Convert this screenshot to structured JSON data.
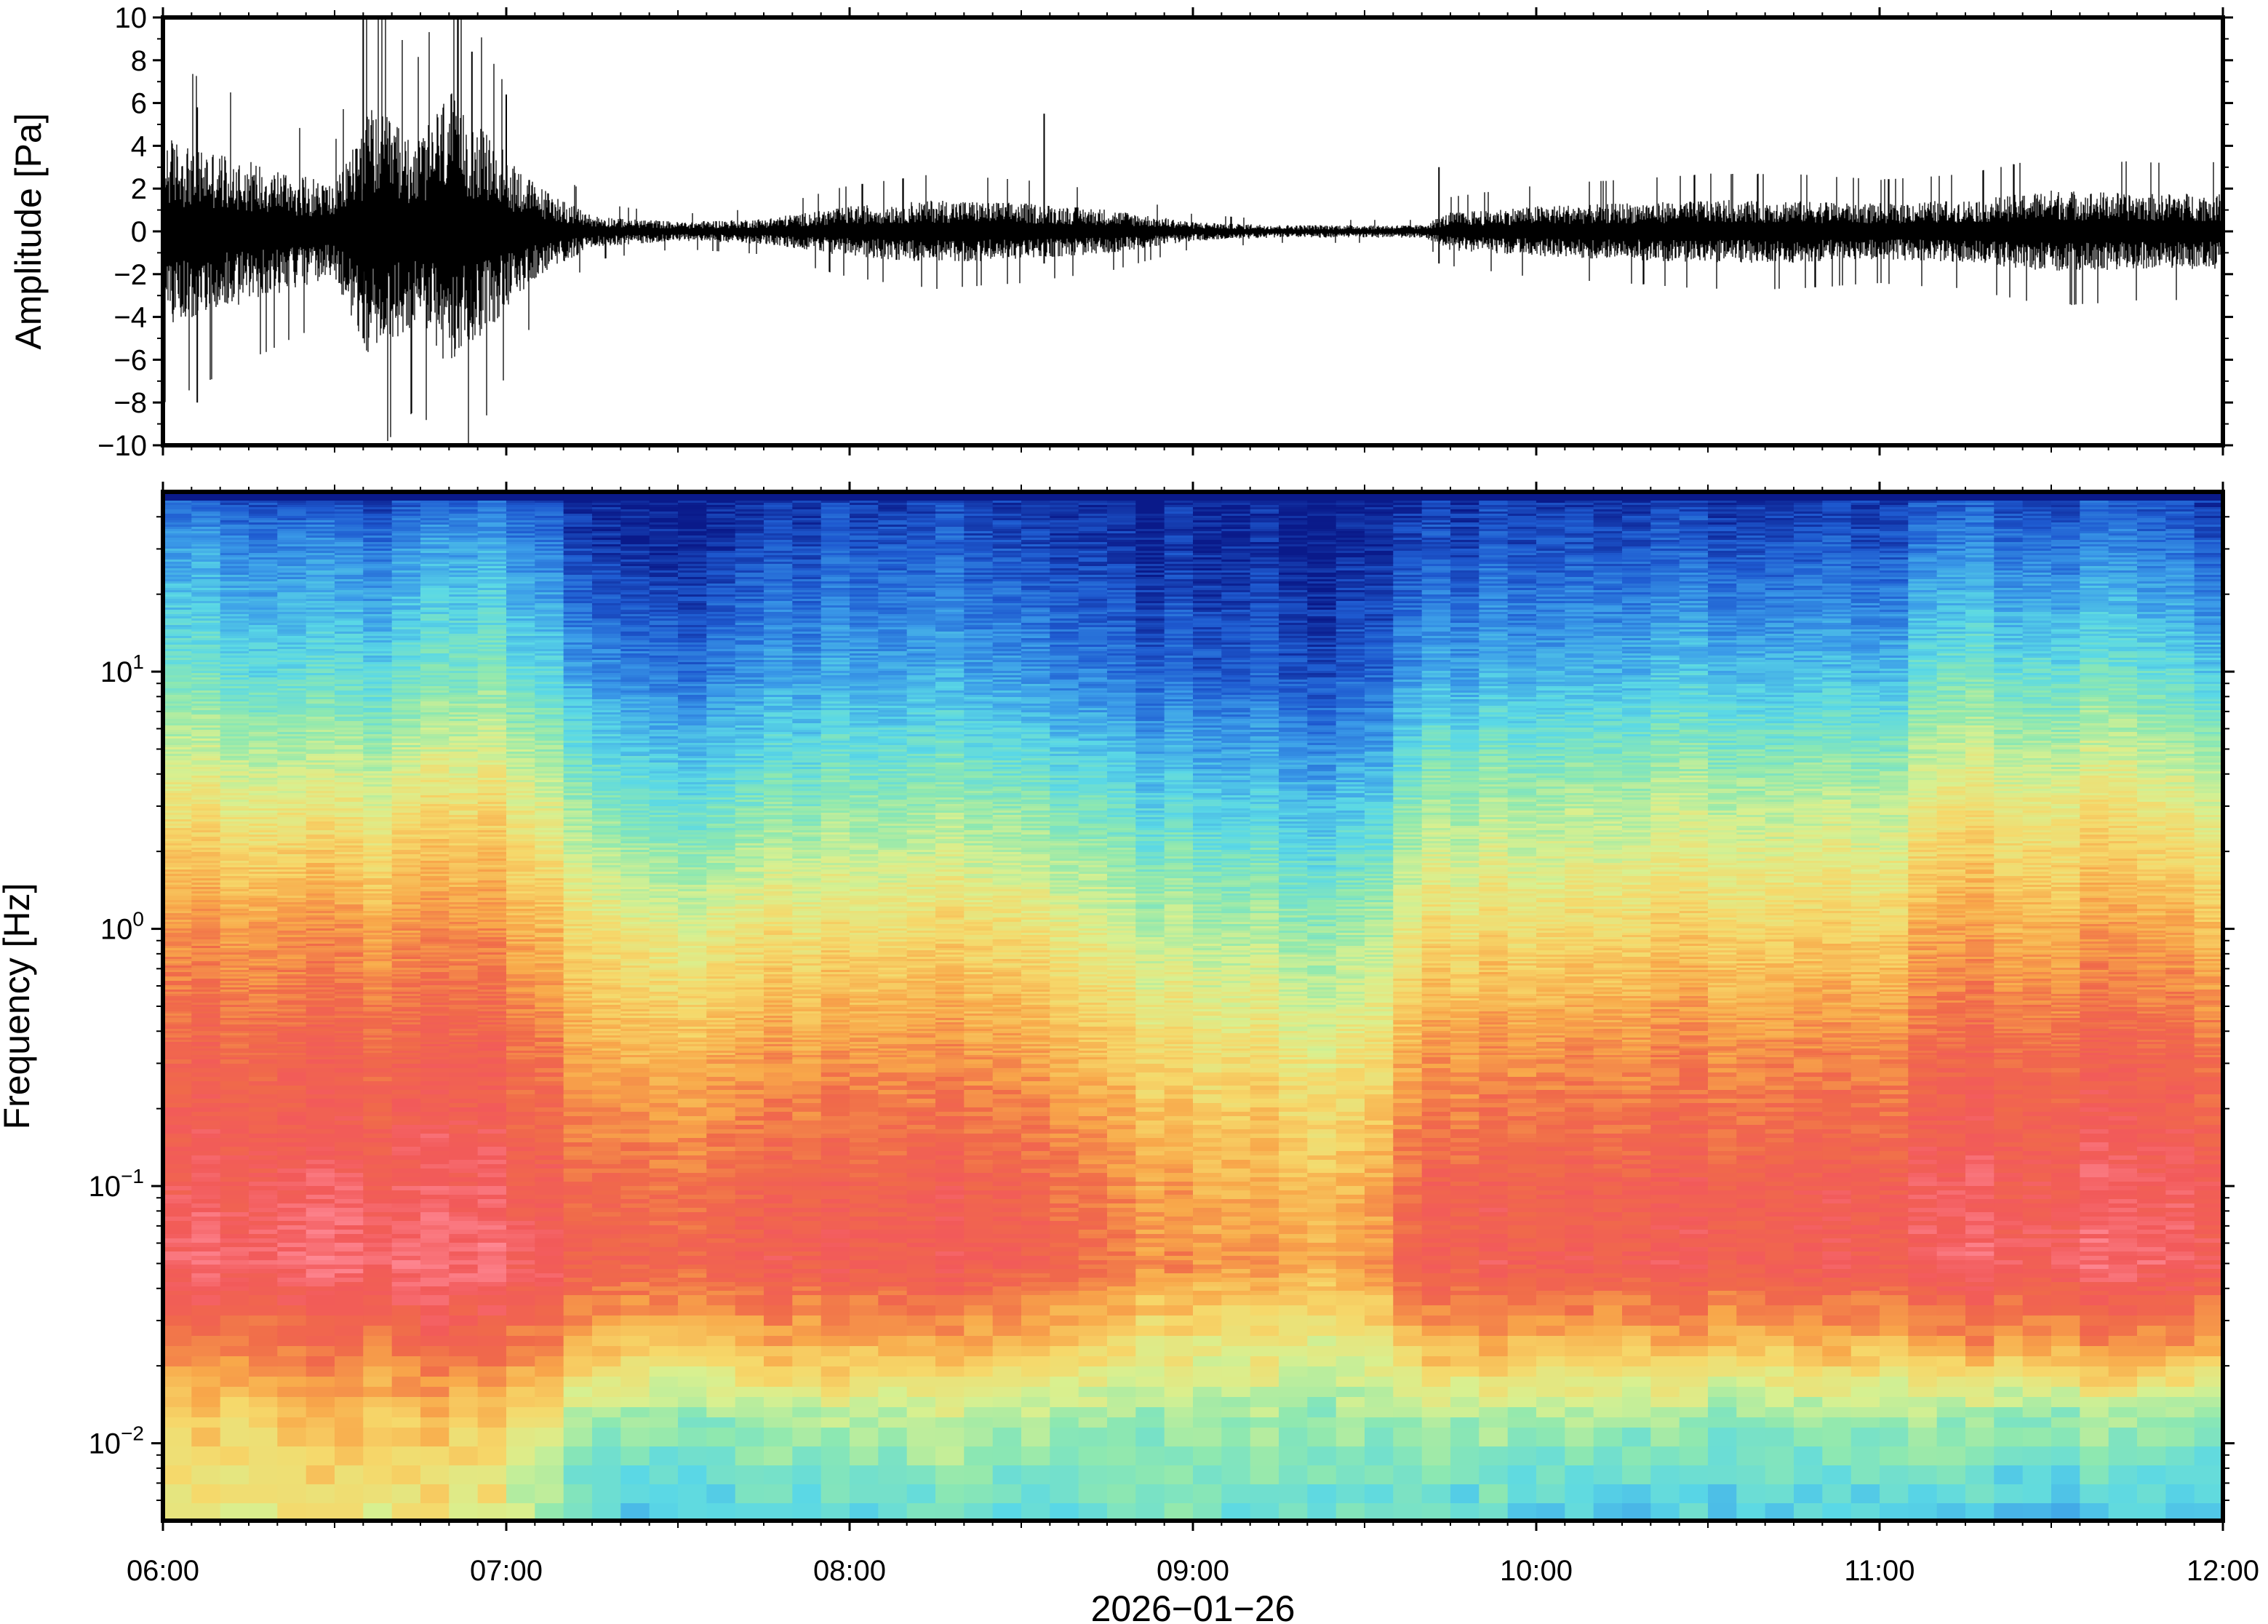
{
  "panels": [
    {
      "id": "waveform",
      "type": "line",
      "ylabel": "Amplitude [Pa]",
      "ylim": [
        -10,
        10
      ],
      "yticks": [
        10,
        8,
        6,
        4,
        2,
        0,
        -2,
        -4,
        -6,
        -8,
        -10
      ],
      "ytick_labels": [
        "10",
        "8",
        "6",
        "4",
        "2",
        "0",
        "−2",
        "−4",
        "−6",
        "−8",
        "−10"
      ],
      "color": "#000000"
    },
    {
      "id": "spectrogram",
      "type": "heatmap",
      "ylabel": "Frequency [Hz]",
      "yscale": "log",
      "ylim_hz": [
        0.005,
        50
      ],
      "yticks_hz": [
        10,
        1,
        0.1,
        0.01
      ],
      "ytick_labels": [
        {
          "base": "10",
          "exp": "1"
        },
        {
          "base": "10",
          "exp": "0"
        },
        {
          "base": "10",
          "exp": "−1"
        },
        {
          "base": "10",
          "exp": "−2"
        }
      ],
      "colormap": "rainbow (blue = low power, red = high power)"
    }
  ],
  "xaxis": {
    "xlabel": "2026−01−26",
    "xlim": [
      "06:00",
      "12:00"
    ],
    "tick_labels": [
      "06:00",
      "07:00",
      "08:00",
      "09:00",
      "10:00",
      "11:00",
      "12:00"
    ]
  },
  "chart_data": [
    {
      "type": "line",
      "ylabel": "Amplitude [Pa]",
      "ylim": [
        -10,
        10
      ],
      "x_range": [
        "06:00",
        "12:00"
      ],
      "xlabel": "2026−01−26",
      "envelope": {
        "x": [
          "06:00",
          "06:10",
          "06:20",
          "06:30",
          "06:36",
          "06:45",
          "06:50",
          "07:00",
          "07:05",
          "07:15",
          "07:30",
          "07:45",
          "08:00",
          "08:15",
          "08:30",
          "08:45",
          "09:00",
          "09:15",
          "09:30",
          "09:40",
          "09:45",
          "10:00",
          "10:15",
          "10:30",
          "10:45",
          "11:00",
          "11:15",
          "11:30",
          "11:45",
          "12:00"
        ],
        "amplitude_pa": [
          3.0,
          2.5,
          2.0,
          1.5,
          4.0,
          3.0,
          4.5,
          2.5,
          1.5,
          0.5,
          0.3,
          0.4,
          0.8,
          1.0,
          0.9,
          0.7,
          0.3,
          0.2,
          0.2,
          0.2,
          0.6,
          0.8,
          0.9,
          1.0,
          1.0,
          0.9,
          1.0,
          1.3,
          1.2,
          1.2
        ]
      },
      "spikes": [
        {
          "x": "06:06",
          "y_max": 5.8,
          "y_min": -8.0
        },
        {
          "x": "06:35",
          "y_max": 10.0,
          "y_min": -5.0
        },
        {
          "x": "06:54",
          "y_max": 8.4,
          "y_min": -4.0
        },
        {
          "x": "07:00",
          "y_max": 6.4,
          "y_min": -3.0
        },
        {
          "x": "08:34",
          "y_max": 5.5,
          "y_min": -1.5
        },
        {
          "x": "09:43",
          "y_max": 3.0,
          "y_min": -1.5
        }
      ]
    },
    {
      "type": "heatmap",
      "ylabel": "Frequency [Hz]",
      "yscale": "log",
      "ylim": [
        0.005,
        50
      ],
      "x_range": [
        "06:00",
        "12:00"
      ],
      "xlabel": "2026−01−26",
      "colormap": [
        "#0a1a8a",
        "#1e5ad0",
        "#3a9ae8",
        "#5ad8e6",
        "#8ee8b0",
        "#d8f090",
        "#f6d86a",
        "#f8a84a",
        "#f06a4a",
        "#f25a5a",
        "#ff8a96"
      ],
      "row_log10_hz": [
        1.7,
        1.5,
        1.0,
        0.5,
        0.0,
        -0.5,
        -1.0,
        -1.3,
        -1.6,
        -1.9,
        -2.3
      ],
      "column_power": [
        {
          "x": "06:00",
          "levels": [
            0.1,
            0.2,
            0.35,
            0.55,
            0.72,
            0.82,
            0.88,
            0.92,
            0.75,
            0.6,
            0.5
          ]
        },
        {
          "x": "06:30",
          "levels": [
            0.05,
            0.15,
            0.3,
            0.52,
            0.72,
            0.83,
            0.9,
            0.94,
            0.8,
            0.65,
            0.55
          ]
        },
        {
          "x": "07:00",
          "levels": [
            0.1,
            0.22,
            0.38,
            0.58,
            0.73,
            0.84,
            0.9,
            0.95,
            0.82,
            0.62,
            0.52
          ]
        },
        {
          "x": "07:15",
          "levels": [
            0.03,
            0.05,
            0.2,
            0.4,
            0.58,
            0.7,
            0.82,
            0.85,
            0.68,
            0.45,
            0.3
          ]
        },
        {
          "x": "07:30",
          "levels": [
            0.02,
            0.03,
            0.15,
            0.33,
            0.53,
            0.68,
            0.8,
            0.84,
            0.65,
            0.4,
            0.28
          ]
        },
        {
          "x": "08:00",
          "levels": [
            0.04,
            0.1,
            0.22,
            0.4,
            0.58,
            0.73,
            0.84,
            0.87,
            0.7,
            0.45,
            0.32
          ]
        },
        {
          "x": "08:30",
          "levels": [
            0.04,
            0.08,
            0.2,
            0.4,
            0.58,
            0.72,
            0.84,
            0.86,
            0.68,
            0.45,
            0.32
          ]
        },
        {
          "x": "09:00",
          "levels": [
            0.01,
            0.02,
            0.1,
            0.28,
            0.44,
            0.58,
            0.68,
            0.72,
            0.55,
            0.42,
            0.34
          ]
        },
        {
          "x": "09:30",
          "levels": [
            0.01,
            0.02,
            0.1,
            0.26,
            0.42,
            0.56,
            0.66,
            0.7,
            0.55,
            0.42,
            0.34
          ]
        },
        {
          "x": "09:40",
          "levels": [
            0.05,
            0.08,
            0.22,
            0.42,
            0.58,
            0.72,
            0.84,
            0.87,
            0.68,
            0.45,
            0.3
          ]
        },
        {
          "x": "10:00",
          "levels": [
            0.05,
            0.1,
            0.25,
            0.45,
            0.6,
            0.75,
            0.86,
            0.88,
            0.7,
            0.45,
            0.3
          ]
        },
        {
          "x": "10:30",
          "levels": [
            0.05,
            0.1,
            0.27,
            0.47,
            0.62,
            0.76,
            0.86,
            0.88,
            0.68,
            0.42,
            0.28
          ]
        },
        {
          "x": "11:00",
          "levels": [
            0.04,
            0.08,
            0.24,
            0.45,
            0.6,
            0.75,
            0.86,
            0.88,
            0.68,
            0.42,
            0.28
          ]
        },
        {
          "x": "11:10",
          "levels": [
            0.08,
            0.16,
            0.35,
            0.55,
            0.7,
            0.82,
            0.9,
            0.92,
            0.72,
            0.42,
            0.28
          ]
        },
        {
          "x": "11:30",
          "levels": [
            0.08,
            0.16,
            0.35,
            0.56,
            0.7,
            0.83,
            0.9,
            0.93,
            0.74,
            0.42,
            0.26
          ]
        },
        {
          "x": "12:00",
          "levels": [
            0.06,
            0.12,
            0.3,
            0.52,
            0.68,
            0.82,
            0.9,
            0.92,
            0.72,
            0.42,
            0.26
          ]
        }
      ]
    }
  ]
}
